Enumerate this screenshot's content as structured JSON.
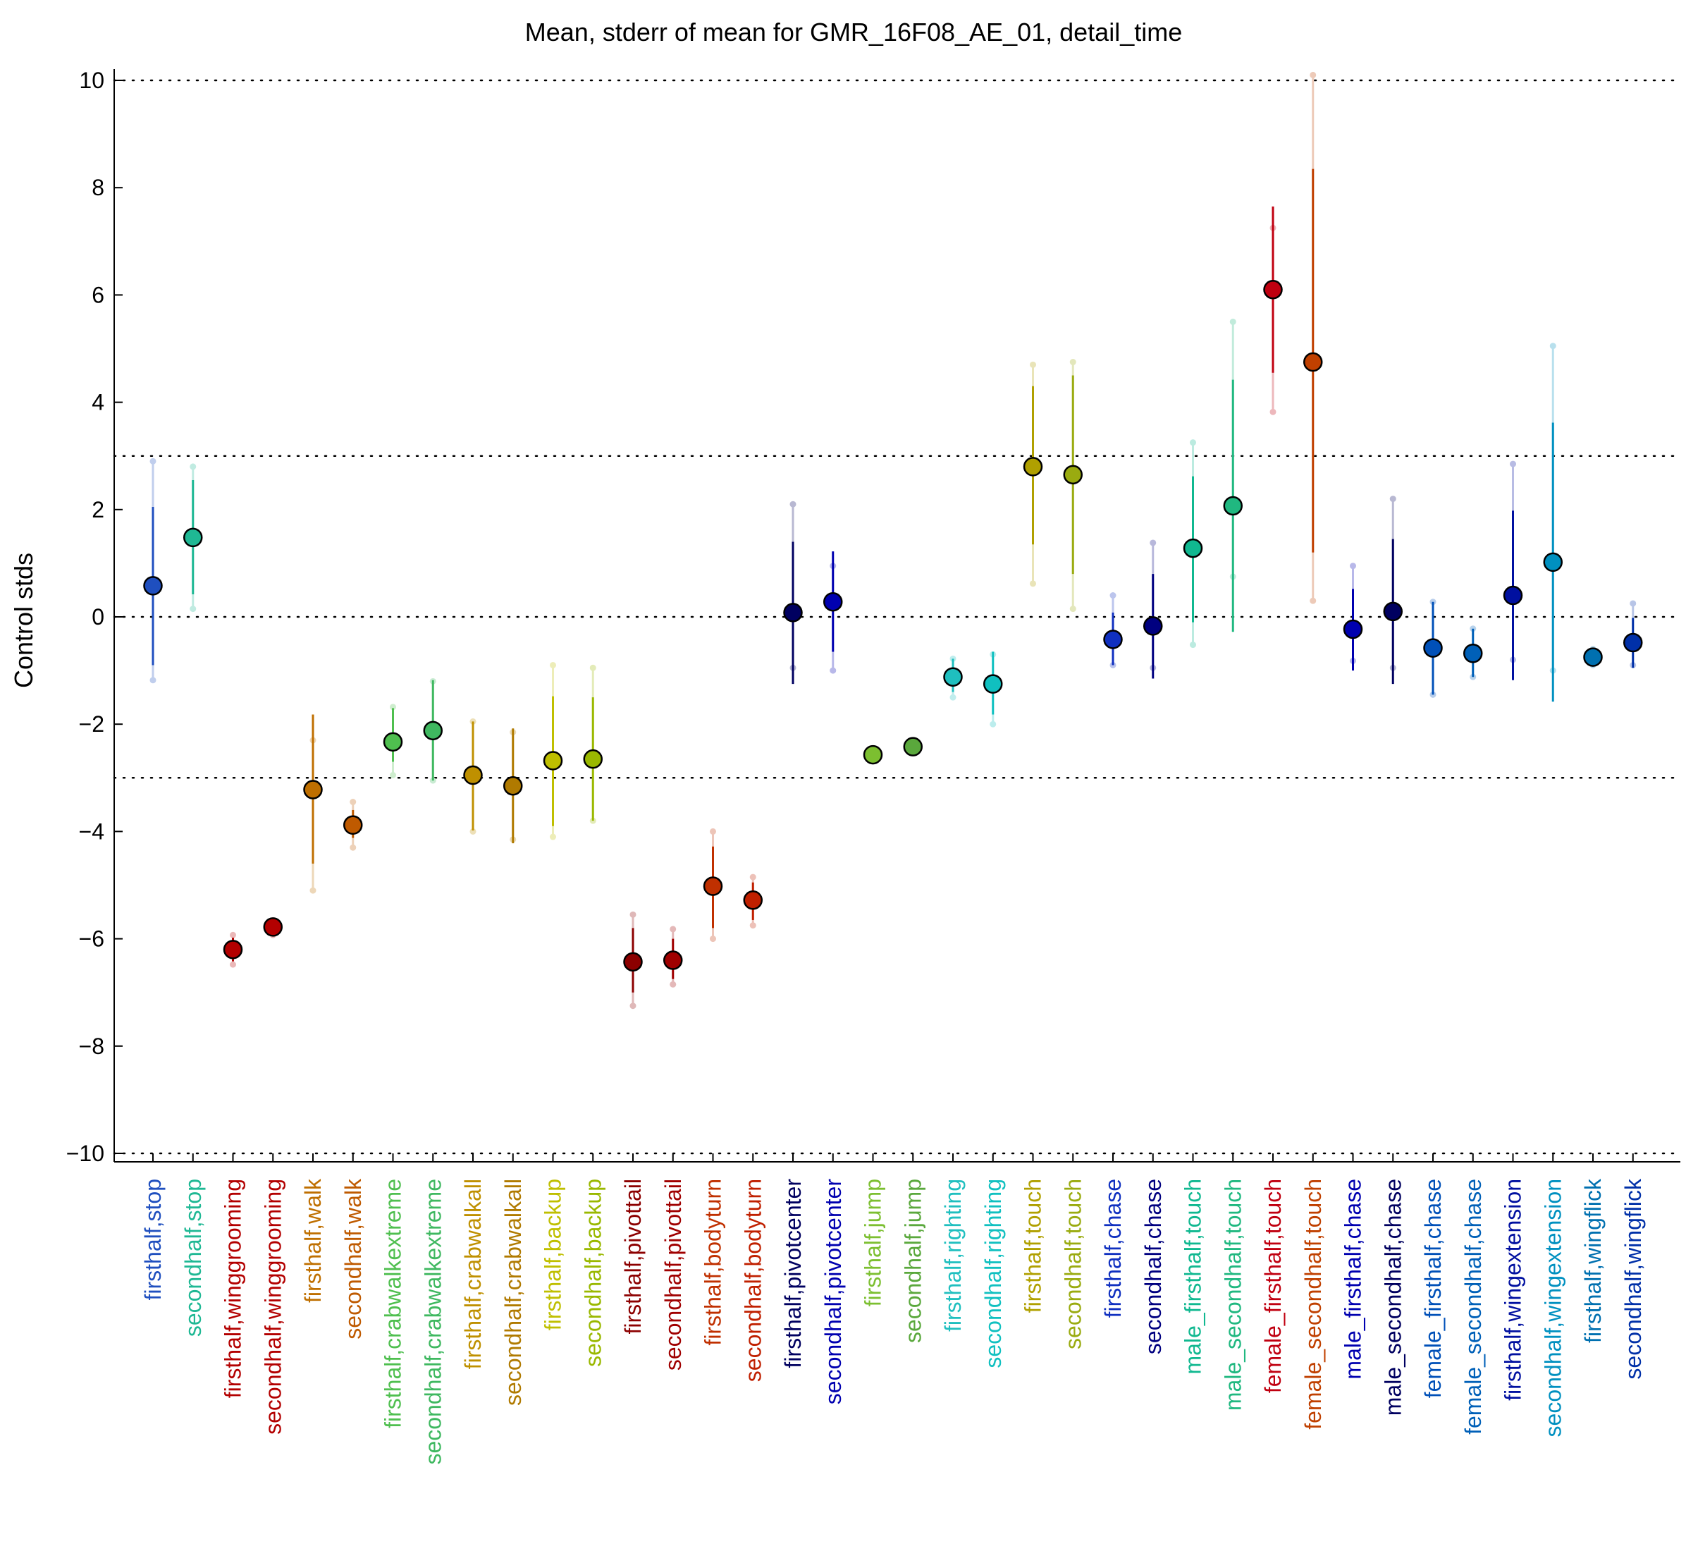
{
  "chart_data": {
    "type": "scatter",
    "title": "Mean, stderr of mean for GMR_16F08_AE_01, detail_time",
    "ylabel": "Control stds",
    "xlabel": "",
    "ylim": [
      -10.2,
      10.2
    ],
    "yticks": [
      10,
      8,
      6,
      4,
      2,
      0,
      -2,
      -4,
      -6,
      -8,
      -10
    ],
    "ytick_labels": [
      "10",
      "8",
      "6",
      "4",
      "2",
      "0",
      "−2",
      "−4",
      "−6",
      "−8",
      "−10"
    ],
    "reference_lines": [
      10,
      3,
      0,
      -3,
      -10
    ],
    "points": [
      {
        "category": "firsthalf,stop",
        "mean": 0.58,
        "stderr_lo": -0.9,
        "stderr_hi": 2.05,
        "range_lo": -1.18,
        "range_hi": 2.9,
        "color": "#1f4fbf"
      },
      {
        "category": "secondhalf,stop",
        "mean": 1.48,
        "stderr_lo": 0.42,
        "stderr_hi": 2.55,
        "range_lo": 0.15,
        "range_hi": 2.8,
        "color": "#1fb894"
      },
      {
        "category": "firsthalf,winggrooming",
        "mean": -6.2,
        "stderr_lo": -6.42,
        "stderr_hi": -5.98,
        "range_lo": -6.48,
        "range_hi": -5.93,
        "color": "#b30000"
      },
      {
        "category": "secondhalf,winggrooming",
        "mean": -5.78,
        "stderr_lo": -5.9,
        "stderr_hi": -5.68,
        "range_lo": -5.93,
        "range_hi": -5.66,
        "color": "#b30000"
      },
      {
        "category": "firsthalf,walk",
        "mean": -3.22,
        "stderr_lo": -4.6,
        "stderr_hi": -1.82,
        "range_lo": -5.1,
        "range_hi": -2.3,
        "color": "#bf6f00"
      },
      {
        "category": "secondhalf,walk",
        "mean": -3.88,
        "stderr_lo": -4.12,
        "stderr_hi": -3.6,
        "range_lo": -4.3,
        "range_hi": -3.45,
        "color": "#bf5a00"
      },
      {
        "category": "firsthalf,crabwalkextreme",
        "mean": -2.33,
        "stderr_lo": -2.7,
        "stderr_hi": -1.7,
        "range_lo": -2.95,
        "range_hi": -1.68,
        "color": "#4fbf4f"
      },
      {
        "category": "secondhalf,crabwalkextreme",
        "mean": -2.12,
        "stderr_lo": -3.05,
        "stderr_hi": -1.18,
        "range_lo": -3.05,
        "range_hi": -1.2,
        "color": "#3fb860"
      },
      {
        "category": "firsthalf,crabwalkall",
        "mean": -2.95,
        "stderr_lo": -3.98,
        "stderr_hi": -1.95,
        "range_lo": -4.0,
        "range_hi": -1.95,
        "color": "#bf9000"
      },
      {
        "category": "secondhalf,crabwalkall",
        "mean": -3.15,
        "stderr_lo": -4.22,
        "stderr_hi": -2.08,
        "range_lo": -4.15,
        "range_hi": -2.15,
        "color": "#b07a00"
      },
      {
        "category": "firsthalf,backup",
        "mean": -2.68,
        "stderr_lo": -3.9,
        "stderr_hi": -1.48,
        "range_lo": -4.1,
        "range_hi": -0.9,
        "color": "#bfbf00"
      },
      {
        "category": "secondhalf,backup",
        "mean": -2.65,
        "stderr_lo": -3.8,
        "stderr_hi": -1.5,
        "range_lo": -3.8,
        "range_hi": -0.95,
        "color": "#9ab800"
      },
      {
        "category": "firsthalf,pivottail",
        "mean": -6.43,
        "stderr_lo": -7.0,
        "stderr_hi": -5.8,
        "range_lo": -7.25,
        "range_hi": -5.55,
        "color": "#8c0000"
      },
      {
        "category": "secondhalf,pivottail",
        "mean": -6.4,
        "stderr_lo": -6.75,
        "stderr_hi": -6.0,
        "range_lo": -6.85,
        "range_hi": -5.82,
        "color": "#a00000"
      },
      {
        "category": "firsthalf,bodyturn",
        "mean": -5.02,
        "stderr_lo": -5.8,
        "stderr_hi": -4.28,
        "range_lo": -6.0,
        "range_hi": -4.0,
        "color": "#c03000"
      },
      {
        "category": "secondhalf,bodyturn",
        "mean": -5.28,
        "stderr_lo": -5.65,
        "stderr_hi": -4.95,
        "range_lo": -5.75,
        "range_hi": -4.85,
        "color": "#c02000"
      },
      {
        "category": "firsthalf,pivotcenter",
        "mean": 0.08,
        "stderr_lo": -1.25,
        "stderr_hi": 1.4,
        "range_lo": -0.95,
        "range_hi": 2.1,
        "color": "#000060"
      },
      {
        "category": "secondhalf,pivotcenter",
        "mean": 0.28,
        "stderr_lo": -0.65,
        "stderr_hi": 1.22,
        "range_lo": -1.0,
        "range_hi": 0.95,
        "color": "#0000b0"
      },
      {
        "category": "firsthalf,jump",
        "mean": -2.57,
        "stderr_lo": -2.62,
        "stderr_hi": -2.52,
        "range_lo": -2.62,
        "range_hi": -2.52,
        "color": "#7cbf30"
      },
      {
        "category": "secondhalf,jump",
        "mean": -2.42,
        "stderr_lo": -2.47,
        "stderr_hi": -2.37,
        "range_lo": -2.47,
        "range_hi": -2.37,
        "color": "#5aa83c"
      },
      {
        "category": "firsthalf,righting",
        "mean": -1.12,
        "stderr_lo": -1.4,
        "stderr_hi": -0.78,
        "range_lo": -1.5,
        "range_hi": -0.78,
        "color": "#1fbfbf"
      },
      {
        "category": "secondhalf,righting",
        "mean": -1.25,
        "stderr_lo": -1.82,
        "stderr_hi": -0.65,
        "range_lo": -2.0,
        "range_hi": -0.7,
        "color": "#10c0c0"
      },
      {
        "category": "firsthalf,touch",
        "mean": 2.8,
        "stderr_lo": 1.35,
        "stderr_hi": 4.3,
        "range_lo": 0.62,
        "range_hi": 4.7,
        "color": "#b0a000"
      },
      {
        "category": "secondhalf,touch",
        "mean": 2.65,
        "stderr_lo": 0.8,
        "stderr_hi": 4.5,
        "range_lo": 0.15,
        "range_hi": 4.75,
        "color": "#9aab10"
      },
      {
        "category": "firsthalf,chase",
        "mean": -0.42,
        "stderr_lo": -0.9,
        "stderr_hi": 0.08,
        "range_lo": -0.9,
        "range_hi": 0.4,
        "color": "#1030c0"
      },
      {
        "category": "secondhalf,chase",
        "mean": -0.17,
        "stderr_lo": -1.15,
        "stderr_hi": 0.8,
        "range_lo": -0.95,
        "range_hi": 1.38,
        "color": "#000080"
      },
      {
        "category": "male_firsthalf,touch",
        "mean": 1.28,
        "stderr_lo": -0.1,
        "stderr_hi": 2.62,
        "range_lo": -0.52,
        "range_hi": 3.25,
        "color": "#10b890"
      },
      {
        "category": "male_secondhalf,touch",
        "mean": 2.07,
        "stderr_lo": -0.28,
        "stderr_hi": 4.42,
        "range_lo": 0.75,
        "range_hi": 5.5,
        "color": "#20b880"
      },
      {
        "category": "female_firsthalf,touch",
        "mean": 6.1,
        "stderr_lo": 4.55,
        "stderr_hi": 7.65,
        "range_lo": 3.82,
        "range_hi": 7.25,
        "color": "#c00010"
      },
      {
        "category": "female_secondhalf,touch",
        "mean": 4.75,
        "stderr_lo": 1.2,
        "stderr_hi": 8.35,
        "range_lo": 0.3,
        "range_hi": 10.1,
        "color": "#c04000"
      },
      {
        "category": "male_firsthalf,chase",
        "mean": -0.23,
        "stderr_lo": -1.0,
        "stderr_hi": 0.52,
        "range_lo": -0.82,
        "range_hi": 0.95,
        "color": "#0000b0"
      },
      {
        "category": "male_secondhalf,chase",
        "mean": 0.1,
        "stderr_lo": -1.25,
        "stderr_hi": 1.45,
        "range_lo": -0.95,
        "range_hi": 2.2,
        "color": "#000060"
      },
      {
        "category": "female_firsthalf,chase",
        "mean": -0.58,
        "stderr_lo": -1.45,
        "stderr_hi": 0.28,
        "range_lo": -1.45,
        "range_hi": 0.28,
        "color": "#0050b8"
      },
      {
        "category": "female_secondhalf,chase",
        "mean": -0.68,
        "stderr_lo": -1.12,
        "stderr_hi": -0.22,
        "range_lo": -1.12,
        "range_hi": -0.22,
        "color": "#0060b8"
      },
      {
        "category": "firsthalf,wingextension",
        "mean": 0.4,
        "stderr_lo": -1.18,
        "stderr_hi": 1.98,
        "range_lo": -0.8,
        "range_hi": 2.85,
        "color": "#0010a0"
      },
      {
        "category": "secondhalf,wingextension",
        "mean": 1.02,
        "stderr_lo": -1.58,
        "stderr_hi": 3.62,
        "range_lo": -1.0,
        "range_hi": 5.05,
        "color": "#0090c0"
      },
      {
        "category": "firsthalf,wingflick",
        "mean": -0.75,
        "stderr_lo": -0.82,
        "stderr_hi": -0.68,
        "range_lo": -0.9,
        "range_hi": -0.6,
        "color": "#0070b0"
      },
      {
        "category": "secondhalf,wingflick",
        "mean": -0.48,
        "stderr_lo": -0.95,
        "stderr_hi": -0.02,
        "range_lo": -0.9,
        "range_hi": 0.25,
        "color": "#0030a8"
      }
    ]
  }
}
